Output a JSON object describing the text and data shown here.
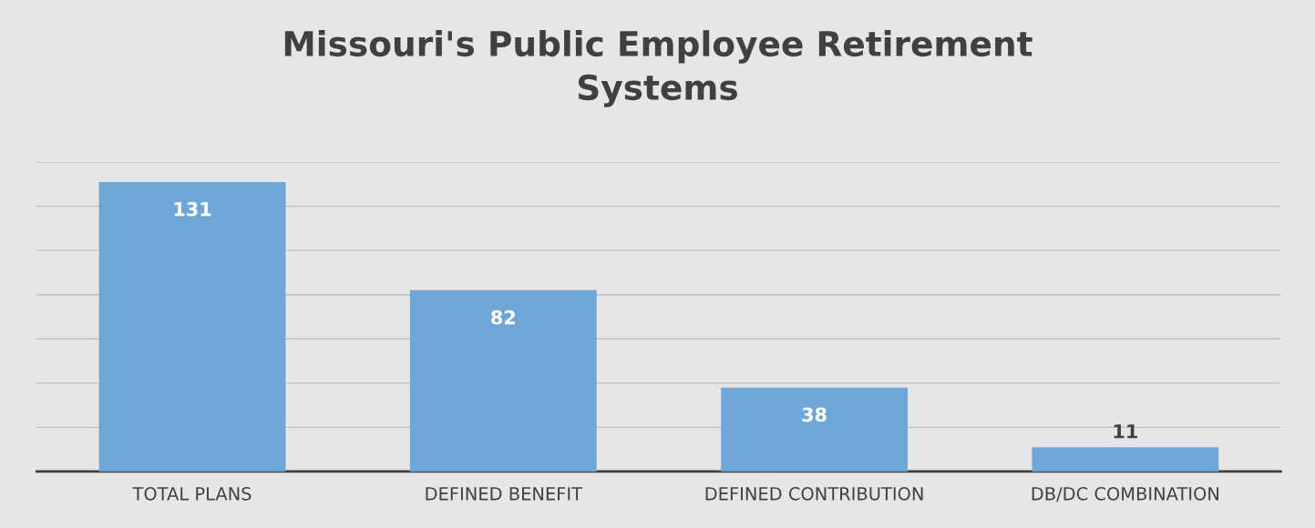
{
  "chart_data": {
    "type": "bar",
    "title": "Missouri's Public Employee Retirement\nSystems",
    "categories": [
      "TOTAL PLANS",
      "DEFINED BENEFIT",
      "DEFINED CONTRIBUTION",
      "DB/DC COMBINATION"
    ],
    "values": [
      131,
      82,
      38,
      11
    ],
    "color": "#6fa6d8",
    "ylim": [
      0,
      140
    ],
    "yticks": [
      {
        "value": 0,
        "label": null
      },
      {
        "value": 20,
        "label": null
      },
      {
        "value": 40,
        "label": null
      },
      {
        "value": 60,
        "label": null
      },
      {
        "value": 80,
        "label": null
      },
      {
        "value": 100,
        "label": null
      },
      {
        "value": 120,
        "label": null
      },
      {
        "value": 140,
        "label": null
      }
    ],
    "grid": "y",
    "data_labels": true,
    "tick_labels": "x"
  }
}
